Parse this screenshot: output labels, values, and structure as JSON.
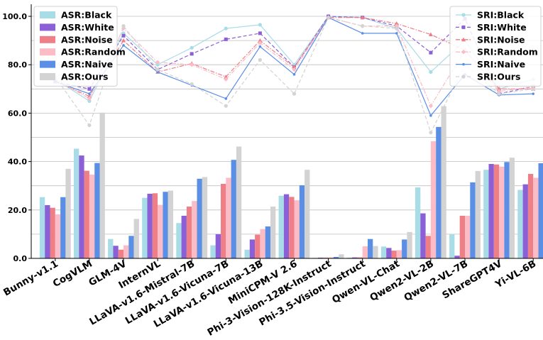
{
  "chart_data": {
    "type": "bar+line",
    "categories": [
      "Bunny-v1.1",
      "CogVLM",
      "GLM-4V",
      "InternVL",
      "LLaVA-v1.6-Mistral-7B",
      "LLaVA-v1.6-Vicuna-7B",
      "LLaVA-v1.6-Vicuna-13B",
      "MiniCPM-V 2.6",
      "Phi-3-Vision-128K-Instruct",
      "Phi-3.5-Vision-Instruct",
      "Qwen-VL-Chat",
      "Qwen2-VL-2B",
      "Qwen2-VL-7B",
      "ShareGPT4V",
      "Yi-VL-6B"
    ],
    "ylim": [
      0,
      100
    ],
    "yticks": [
      "0.0",
      "20.0",
      "40.0",
      "60.0",
      "80.0",
      "100.0"
    ],
    "grid": true,
    "bar_series": [
      {
        "name": "ASR:Black",
        "color": "#a8dce6",
        "values": [
          25.3,
          45.3,
          8.0,
          25.0,
          14.6,
          5.4,
          3.6,
          25.9,
          0.2,
          0.3,
          4.9,
          29.3,
          10.1,
          36.6,
          28.3
        ]
      },
      {
        "name": "ASR:White",
        "color": "#8b5fd6",
        "values": [
          22.0,
          42.5,
          5.2,
          26.7,
          17.6,
          10.0,
          7.8,
          26.5,
          0.3,
          0.4,
          4.3,
          18.6,
          1.1,
          39.0,
          30.6
        ]
      },
      {
        "name": "ASR:Noise",
        "color": "#ee7f86",
        "values": [
          20.9,
          36.2,
          3.6,
          26.9,
          21.4,
          30.8,
          9.8,
          25.4,
          0.3,
          0.4,
          3.2,
          9.3,
          17.6,
          38.8,
          34.9
        ]
      },
      {
        "name": "ASR:Random",
        "color": "#fbbcc5",
        "values": [
          18.2,
          34.6,
          5.4,
          22.1,
          23.7,
          33.3,
          12.1,
          24.0,
          0.4,
          5.0,
          3.4,
          48.4,
          17.6,
          37.9,
          33.3
        ]
      },
      {
        "name": "ASR:Naive",
        "color": "#5b8fe6",
        "values": [
          25.3,
          39.4,
          9.3,
          27.5,
          32.9,
          40.7,
          13.2,
          30.2,
          0.6,
          8.0,
          7.8,
          54.3,
          31.4,
          39.8,
          39.3
        ]
      },
      {
        "name": "ASR:Ours",
        "color": "#d3d3d3",
        "values": [
          37.0,
          60.2,
          16.3,
          28.0,
          33.6,
          46.2,
          21.4,
          36.6,
          1.7,
          5.1,
          10.9,
          62.9,
          36.1,
          41.6,
          39.5
        ]
      }
    ],
    "line_series": [
      {
        "name": "SRI:Black",
        "color": "#a8dce6",
        "marker": "circle",
        "dash": "solid",
        "values": [
          74,
          65,
          93,
          80,
          87,
          95,
          96.5,
          80,
          100,
          99.5,
          95,
          77,
          90,
          70,
          74
        ]
      },
      {
        "name": "SRI:White",
        "color": "#8b5fd6",
        "marker": "square",
        "dash": "dashed",
        "values": [
          73,
          70,
          92,
          78,
          84.5,
          90.5,
          93,
          79,
          100,
          99.5,
          96,
          85,
          99,
          68,
          71
        ]
      },
      {
        "name": "SRI:Noise",
        "color": "#ee7f86",
        "marker": "triangle",
        "dash": "dashdot",
        "values": [
          73,
          67,
          90,
          77,
          80.5,
          75,
          90,
          79,
          99.5,
          99.5,
          97,
          92.5,
          86,
          70,
          70
        ]
      },
      {
        "name": "SRI:Random",
        "color": "#fbbcc5",
        "marker": "diamond",
        "dash": "dashdot",
        "values": [
          74,
          66,
          95,
          81,
          80,
          74,
          89,
          78,
          99.5,
          96,
          96,
          63,
          86,
          69,
          71
        ]
      },
      {
        "name": "SRI:Naive",
        "color": "#5b8fe6",
        "marker": "point",
        "dash": "solid",
        "values": [
          73,
          68,
          88,
          77,
          71.5,
          66,
          87.5,
          76,
          99.5,
          93,
          93,
          59,
          76,
          67.5,
          68
        ]
      },
      {
        "name": "SRI:Ours",
        "color": "#d3d3d3",
        "marker": "circle",
        "dash": "dashed",
        "values": [
          75,
          55,
          96,
          78,
          72,
          63,
          82,
          68,
          99.5,
          96,
          95,
          52,
          80,
          68,
          70
        ]
      }
    ],
    "legend_left_position": "top-left",
    "legend_right_position": "top-right"
  }
}
